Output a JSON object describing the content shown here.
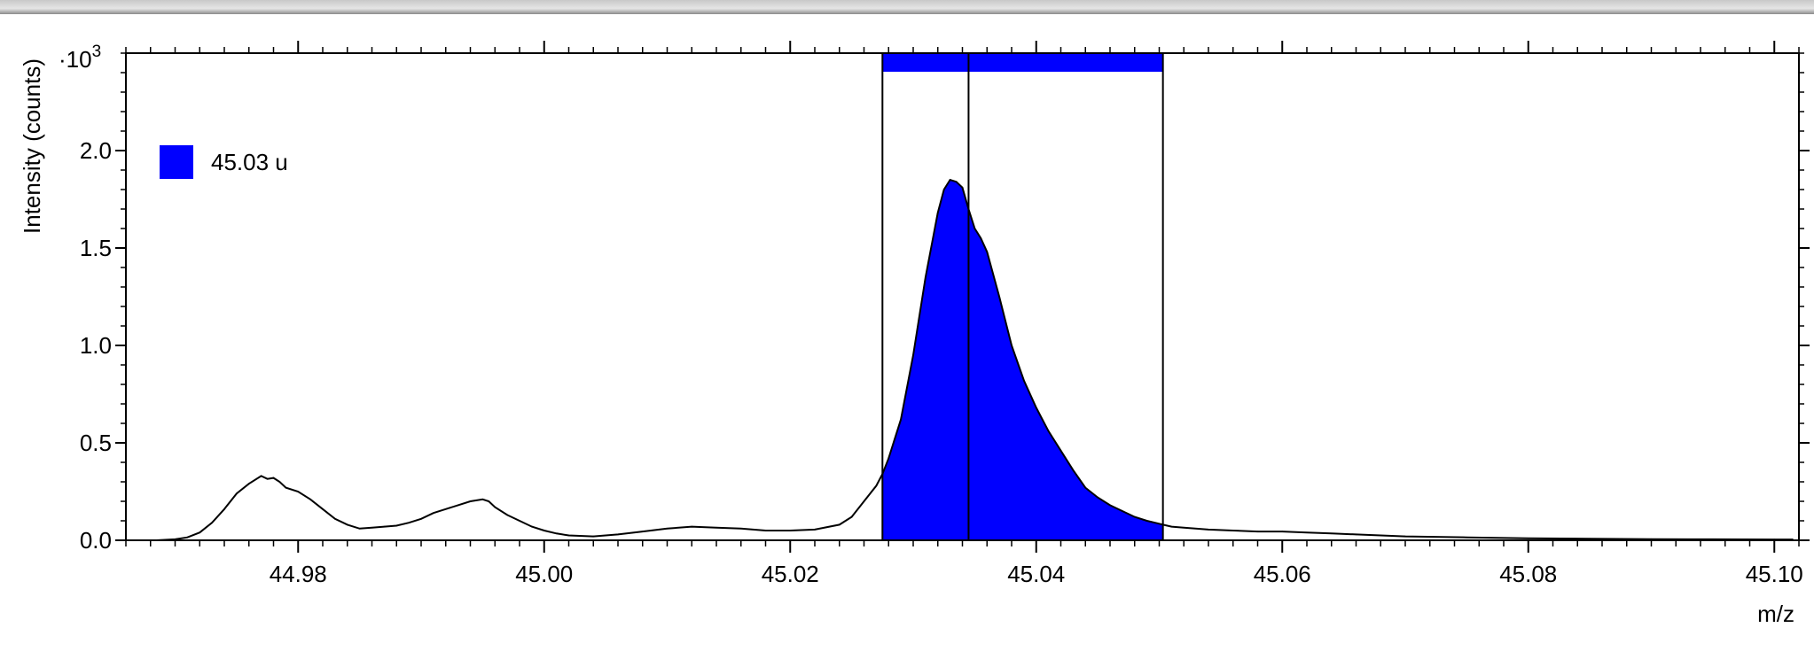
{
  "chart_data": {
    "type": "area",
    "xlabel": "m/z",
    "ylabel": "Intensity (counts)",
    "y_multiplier_label": "·10",
    "y_multiplier_exp": "3",
    "xlim": [
      44.966,
      45.102
    ],
    "ylim": [
      0.0,
      2.5
    ],
    "x_ticks": [
      "44.98",
      "45.00",
      "45.02",
      "45.04",
      "45.06",
      "45.08",
      "45.10"
    ],
    "y_ticks": [
      "0.0",
      "0.5",
      "1.0",
      "1.5",
      "2.0"
    ],
    "grid": false,
    "legend": {
      "placement": "top-left",
      "entries": [
        {
          "label": "45.03 u",
          "color": "#0000ff"
        }
      ]
    },
    "highlight_range": {
      "x_start": 45.0275,
      "x_end": 45.0503,
      "center": 45.0345,
      "color": "#0000ff"
    },
    "series": [
      {
        "x": [
          44.9685,
          44.97,
          44.971,
          44.972,
          44.973,
          44.974,
          44.975,
          44.976,
          44.977,
          44.9775,
          44.978,
          44.9785,
          44.979,
          44.98,
          44.981,
          44.982,
          44.983,
          44.984,
          44.985,
          44.986,
          44.987,
          44.988,
          44.989,
          44.99,
          44.991,
          44.992,
          44.993,
          44.994,
          44.995,
          44.9955,
          44.996,
          44.997,
          44.998,
          44.999,
          45.0,
          45.001,
          45.002,
          45.004,
          45.006,
          45.008,
          45.01,
          45.012,
          45.014,
          45.016,
          45.018,
          45.02,
          45.022,
          45.024,
          45.025,
          45.026,
          45.027,
          45.0275,
          45.028,
          45.029,
          45.03,
          45.031,
          45.032,
          45.0325,
          45.033,
          45.0335,
          45.034,
          45.0345,
          45.035,
          45.0355,
          45.036,
          45.037,
          45.038,
          45.039,
          45.04,
          45.041,
          45.042,
          45.043,
          45.044,
          45.045,
          45.046,
          45.047,
          45.048,
          45.049,
          45.05,
          45.0503,
          45.051,
          45.052,
          45.054,
          45.056,
          45.058,
          45.06,
          45.062,
          45.064,
          45.066,
          45.068,
          45.07,
          45.075,
          45.08,
          45.085,
          45.09,
          45.095,
          45.1,
          45.1015
        ],
        "y": [
          0.0,
          0.005,
          0.015,
          0.04,
          0.09,
          0.16,
          0.24,
          0.29,
          0.33,
          0.315,
          0.32,
          0.3,
          0.27,
          0.25,
          0.21,
          0.16,
          0.11,
          0.08,
          0.06,
          0.065,
          0.07,
          0.075,
          0.09,
          0.11,
          0.14,
          0.16,
          0.18,
          0.2,
          0.21,
          0.2,
          0.17,
          0.13,
          0.1,
          0.07,
          0.05,
          0.035,
          0.025,
          0.02,
          0.03,
          0.045,
          0.06,
          0.07,
          0.065,
          0.06,
          0.05,
          0.05,
          0.055,
          0.08,
          0.12,
          0.2,
          0.28,
          0.34,
          0.42,
          0.62,
          0.95,
          1.35,
          1.68,
          1.8,
          1.85,
          1.84,
          1.81,
          1.7,
          1.6,
          1.55,
          1.48,
          1.25,
          1.0,
          0.82,
          0.68,
          0.56,
          0.46,
          0.36,
          0.27,
          0.22,
          0.18,
          0.15,
          0.12,
          0.1,
          0.085,
          0.08,
          0.07,
          0.065,
          0.055,
          0.05,
          0.045,
          0.045,
          0.04,
          0.035,
          0.03,
          0.025,
          0.02,
          0.015,
          0.01,
          0.008,
          0.006,
          0.005,
          0.004,
          0.004
        ]
      }
    ]
  }
}
